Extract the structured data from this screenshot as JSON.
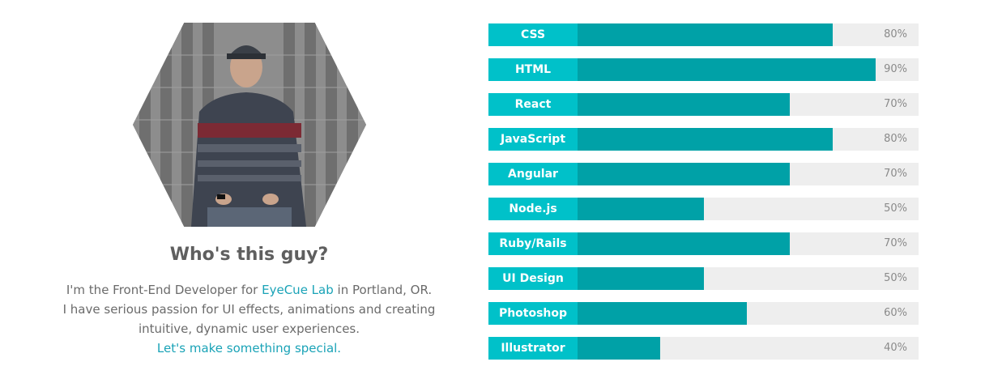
{
  "profile": {
    "photo_alt": "hexagon-portrait",
    "headline": "Who's this guy?",
    "bio_line1_prefix": "I'm the Front-End Developer for ",
    "bio_company_link": "EyeCue Lab",
    "bio_line1_suffix": " in Portland, OR.",
    "bio_line2": "I have serious passion for UI effects, animations and creating",
    "bio_line3": "intuitive, dynamic user experiences.",
    "cta_link": "Let's make something special."
  },
  "skills": [
    {
      "label": "CSS",
      "percent": 80,
      "percent_text": "80%"
    },
    {
      "label": "HTML",
      "percent": 90,
      "percent_text": "90%"
    },
    {
      "label": "React",
      "percent": 70,
      "percent_text": "70%"
    },
    {
      "label": "JavaScript",
      "percent": 80,
      "percent_text": "80%"
    },
    {
      "label": "Angular",
      "percent": 70,
      "percent_text": "70%"
    },
    {
      "label": "Node.js",
      "percent": 50,
      "percent_text": "50%"
    },
    {
      "label": "Ruby/Rails",
      "percent": 70,
      "percent_text": "70%"
    },
    {
      "label": "UI Design",
      "percent": 50,
      "percent_text": "50%"
    },
    {
      "label": "Photoshop",
      "percent": 60,
      "percent_text": "60%"
    },
    {
      "label": "Illustrator",
      "percent": 40,
      "percent_text": "40%"
    }
  ],
  "colors": {
    "label_bg": "#00c1c9",
    "fill": "#00a1a7",
    "track": "#eeeeee",
    "link": "#1aa3b7"
  }
}
